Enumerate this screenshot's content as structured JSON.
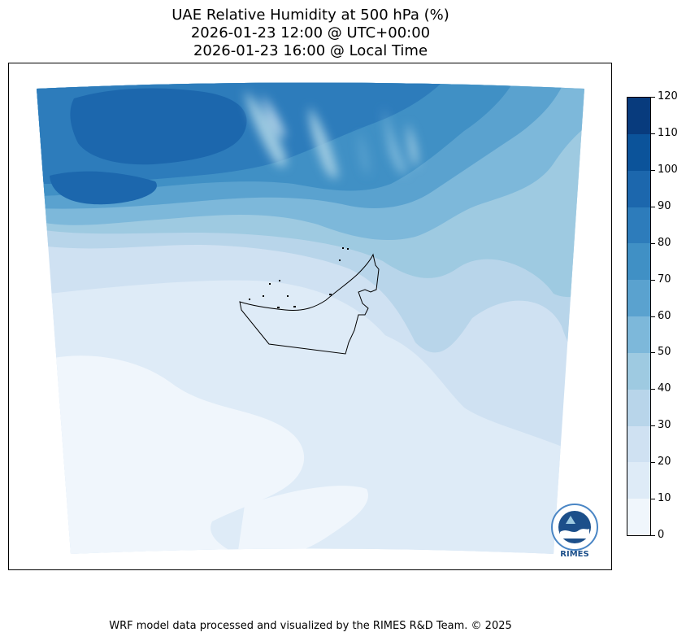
{
  "title": {
    "line1": "UAE Relative Humidity at 500 hPa (%)",
    "line2": "2026-01-23 12:00 @ UTC+00:00",
    "line3": "2026-01-23 16:00 @ Local Time"
  },
  "colorbar": {
    "ticks": [
      "0",
      "10",
      "20",
      "30",
      "40",
      "50",
      "60",
      "70",
      "80",
      "90",
      "100",
      "110",
      "120"
    ],
    "colors": [
      "#f0f6fc",
      "#deebf7",
      "#cfe1f2",
      "#b8d5ea",
      "#9ecae1",
      "#7db8da",
      "#5aa2cf",
      "#4090c5",
      "#2d7cbb",
      "#1c67ad",
      "#0b539a",
      "#083b7d"
    ]
  },
  "logo": {
    "text": "RIMES"
  },
  "footer": {
    "text": "WRF model data processed and visualized by the RIMES R&D Team. © 2025"
  }
}
